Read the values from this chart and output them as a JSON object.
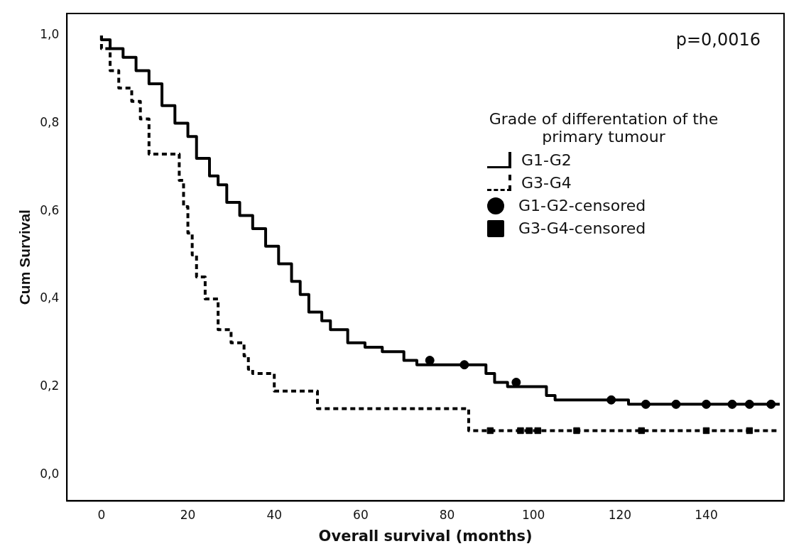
{
  "chart_data": {
    "type": "step",
    "xlabel": "Overall survival (months)",
    "ylabel": "Cum Survival",
    "legend_title": "Grade of differentation of the primary tumour",
    "legend": "right",
    "grid": false,
    "annotations": [
      "p=0,0016"
    ],
    "xlim": [
      -8,
      158
    ],
    "xticks": [
      0,
      20,
      40,
      60,
      80,
      100,
      120,
      140
    ],
    "ylim": [
      -0.06,
      1.05
    ],
    "yticks": [
      {
        "value": 0,
        "label": "0,0"
      },
      {
        "value": 0.2,
        "label": "0,2"
      },
      {
        "value": 0.4,
        "label": "0,4"
      },
      {
        "value": 0.6,
        "label": "0,6"
      },
      {
        "value": 0.8,
        "label": "0,8"
      },
      {
        "value": 1,
        "label": "1,0"
      }
    ],
    "series": [
      {
        "name": "G1-G2",
        "color": "#000000",
        "line_style": "solid",
        "marker": "none",
        "x": [
          0,
          2,
          5,
          8,
          11,
          14,
          17,
          20,
          22,
          25,
          27,
          29,
          32,
          35,
          38,
          41,
          44,
          46,
          48,
          51,
          53,
          57,
          61,
          65,
          70,
          73,
          89,
          91,
          94,
          103,
          105,
          122,
          123,
          157
        ],
        "values": [
          1.0,
          0.99,
          0.97,
          0.95,
          0.92,
          0.89,
          0.84,
          0.8,
          0.77,
          0.72,
          0.68,
          0.66,
          0.62,
          0.59,
          0.56,
          0.52,
          0.48,
          0.44,
          0.41,
          0.37,
          0.35,
          0.33,
          0.3,
          0.29,
          0.28,
          0.26,
          0.25,
          0.23,
          0.21,
          0.2,
          0.18,
          0.17,
          0.16,
          0.16
        ]
      },
      {
        "name": "G3-G4",
        "color": "#000000",
        "line_style": "dashed",
        "marker": "none",
        "x": [
          0,
          2,
          4,
          7,
          9,
          11,
          12,
          18,
          19,
          20,
          21,
          22,
          24,
          27,
          30,
          33,
          34,
          35,
          40,
          43,
          50,
          51,
          85,
          86,
          157
        ],
        "values": [
          1.0,
          0.97,
          0.92,
          0.88,
          0.85,
          0.81,
          0.73,
          0.73,
          0.67,
          0.61,
          0.55,
          0.5,
          0.45,
          0.4,
          0.33,
          0.3,
          0.27,
          0.24,
          0.23,
          0.19,
          0.19,
          0.15,
          0.15,
          0.1,
          0.1
        ]
      },
      {
        "name": "G1-G2-censored",
        "type": "scatter",
        "color": "#000000",
        "marker": "circle",
        "x": [
          76,
          84,
          96,
          118,
          126,
          133,
          140,
          146,
          150,
          155
        ],
        "values": [
          0.26,
          0.25,
          0.21,
          0.17,
          0.16,
          0.16,
          0.16,
          0.16,
          0.16,
          0.16
        ]
      },
      {
        "name": "G3-G4-censored",
        "type": "scatter",
        "color": "#000000",
        "marker": "square",
        "x": [
          90,
          97,
          99,
          101,
          110,
          125,
          140,
          150
        ],
        "values": [
          0.1,
          0.1,
          0.1,
          0.1,
          0.1,
          0.1,
          0.1,
          0.1
        ]
      }
    ]
  }
}
